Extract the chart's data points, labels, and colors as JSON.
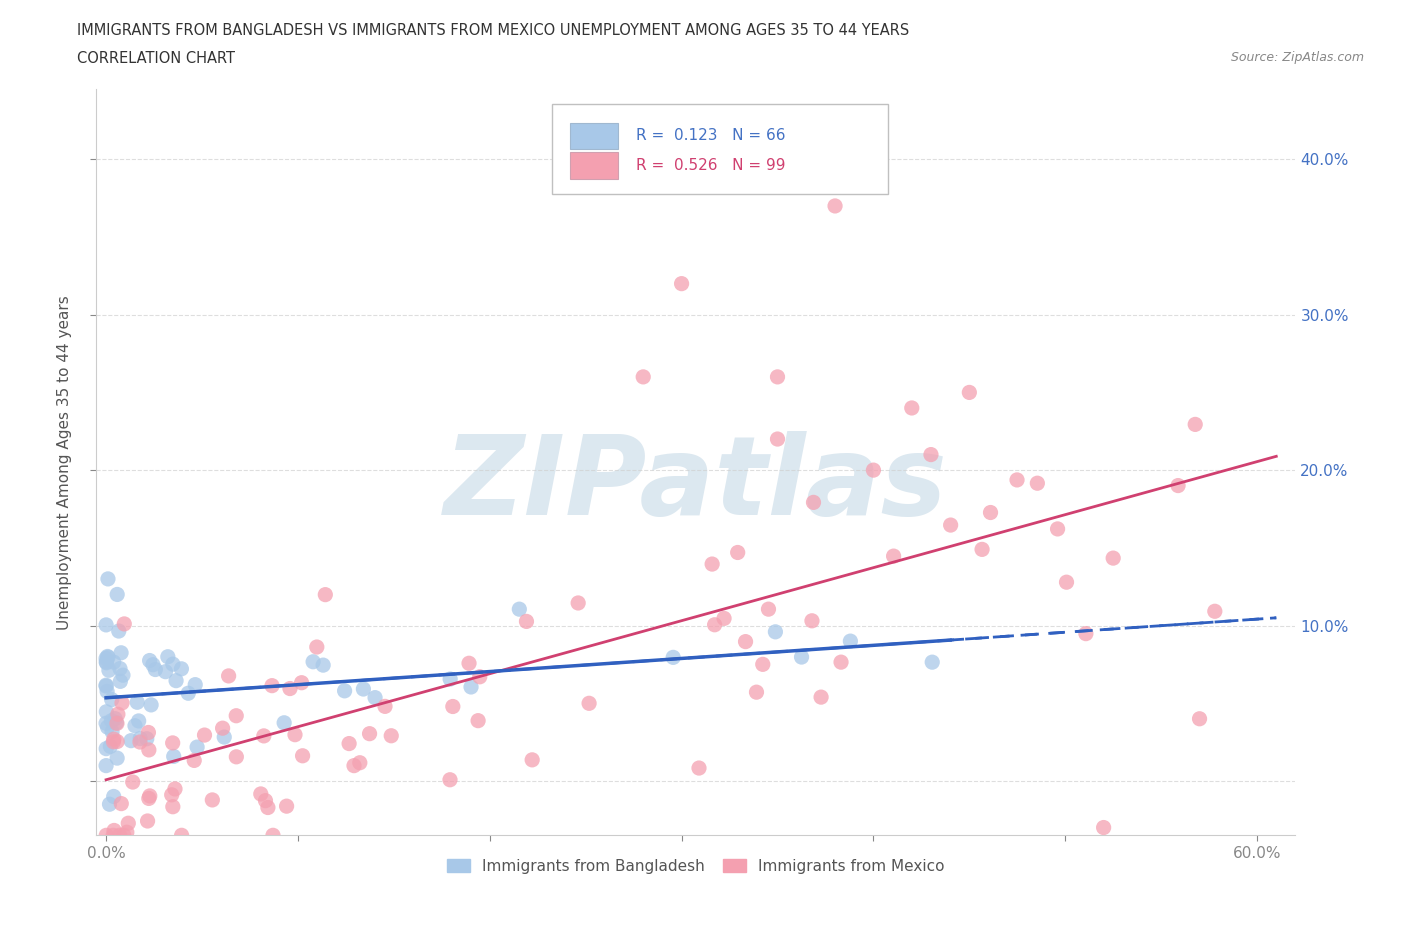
{
  "title_line1": "IMMIGRANTS FROM BANGLADESH VS IMMIGRANTS FROM MEXICO UNEMPLOYMENT AMONG AGES 35 TO 44 YEARS",
  "title_line2": "CORRELATION CHART",
  "source_text": "Source: ZipAtlas.com",
  "ylabel": "Unemployment Among Ages 35 to 44 years",
  "xlim": [
    -0.005,
    0.62
  ],
  "ylim": [
    -0.035,
    0.445
  ],
  "xtick_positions": [
    0.0,
    0.1,
    0.2,
    0.3,
    0.4,
    0.5,
    0.6
  ],
  "xticklabels": [
    "0.0%",
    "",
    "",
    "",
    "",
    "",
    "60.0%"
  ],
  "ytick_positions": [
    0.0,
    0.1,
    0.2,
    0.3,
    0.4
  ],
  "right_ytick_labels": [
    "",
    "10.0%",
    "20.0%",
    "30.0%",
    "40.0%"
  ],
  "grid_color": "#d0d0d0",
  "background_color": "#ffffff",
  "watermark_text": "ZIPatlas",
  "watermark_color": "#dce8f0",
  "bangladesh_color": "#a8c8e8",
  "mexico_color": "#f4a0b0",
  "bangladesh_trend_color": "#3060c0",
  "mexico_trend_color": "#d04070",
  "legend_R_color": "#4472c4",
  "legend_bangladesh_label": "R =  0.123   N = 66",
  "legend_mexico_label": "R =  0.526   N = 99",
  "bottom_label_bangladesh": "Immigrants from Bangladesh",
  "bottom_label_mexico": "Immigrants from Mexico"
}
